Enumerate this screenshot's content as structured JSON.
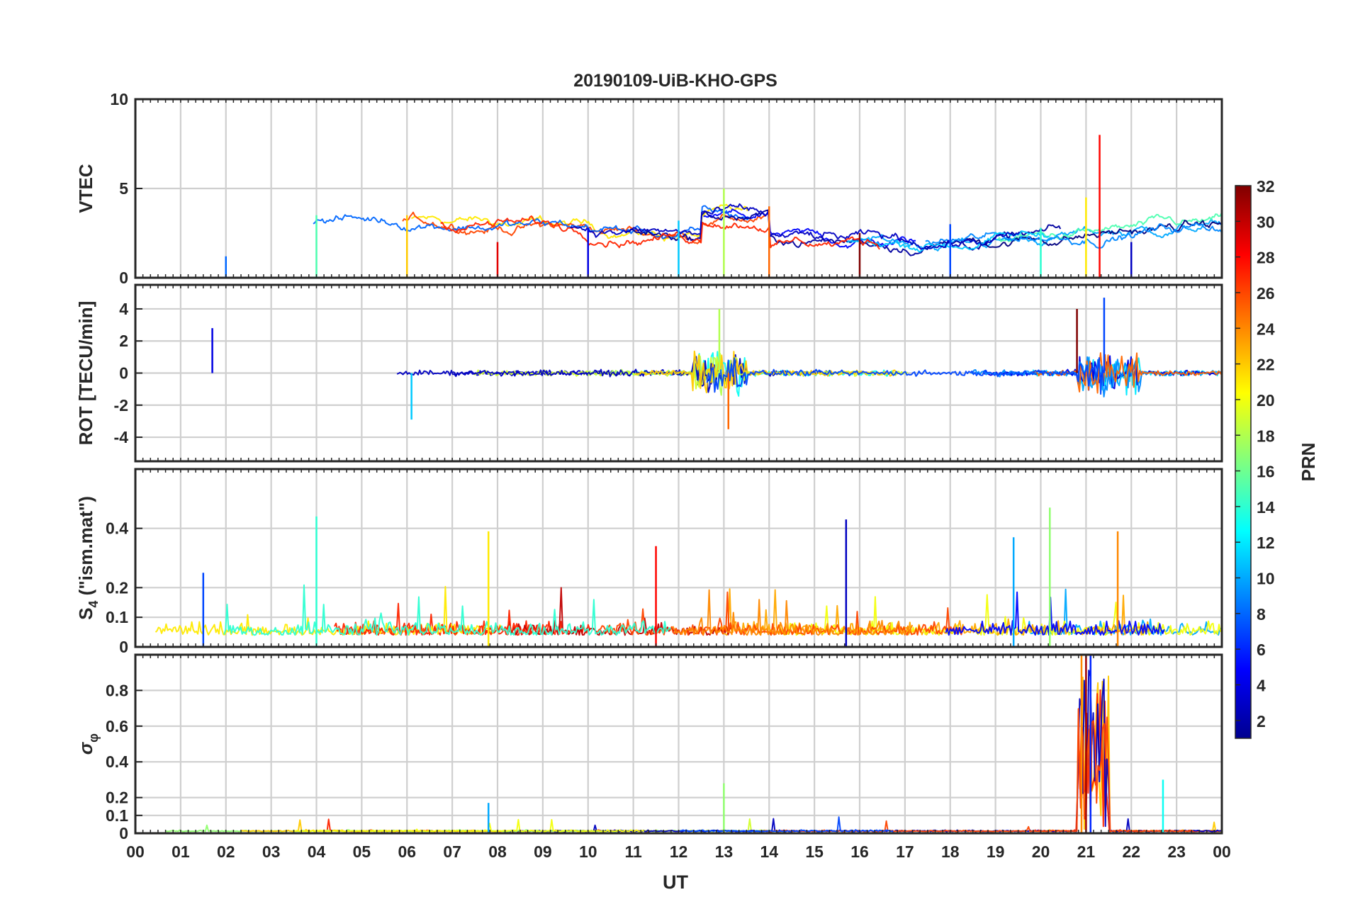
{
  "chart_data": {
    "type": "line",
    "title": "20190109-UiB-KHO-GPS",
    "xlabel": "UT",
    "x_ticks": [
      "00",
      "01",
      "02",
      "03",
      "04",
      "05",
      "06",
      "07",
      "08",
      "09",
      "10",
      "11",
      "12",
      "13",
      "14",
      "15",
      "16",
      "17",
      "18",
      "19",
      "20",
      "21",
      "22",
      "23",
      "00"
    ],
    "xlim_hours": [
      0,
      24
    ],
    "grid": true,
    "panels": [
      {
        "ylabel": "VTEC",
        "ylim": [
          0,
          10
        ],
        "yticks": [
          "0",
          "5",
          "10"
        ],
        "description": "vertical TEC per satellite",
        "series_summary": [
          {
            "x": [
              0,
              2,
              4,
              6,
              8,
              10,
              12,
              13,
              14,
              16,
              18,
              20,
              21,
              21.3,
              22,
              24
            ],
            "y": [
              2,
              1.2,
              3.5,
              3.5,
              2,
              2.8,
              3.2,
              5,
              4,
              2.5,
              3,
              2.8,
              4.5,
              8,
              2,
              2.2
            ]
          }
        ]
      },
      {
        "ylabel": "ROT [TECU/min]",
        "ylim": [
          -5.5,
          5.5
        ],
        "yticks": [
          "-4",
          "-2",
          "0",
          "2",
          "4"
        ],
        "series_summary": [
          {
            "x": [
              1.7,
              6.1,
              12.9,
              13.1,
              20.8,
              21.4
            ],
            "y": [
              2.8,
              -2.9,
              4.0,
              -3.5,
              4.0,
              4.7
            ]
          }
        ]
      },
      {
        "ylabel": "S₄ (\"ism.mat\")",
        "ylabel_main": "S",
        "ylabel_sub": "4",
        "ylabel_rest": " (\"ism.mat\")",
        "ylim": [
          0,
          0.6
        ],
        "yticks": [
          "0",
          "0.1",
          "0.2",
          "0.4"
        ],
        "series_summary": [
          {
            "x": [
              1.5,
              4.0,
              7.8,
              11.5,
              15.7,
              19.4,
              20.2,
              21.7
            ],
            "y": [
              0.25,
              0.44,
              0.39,
              0.34,
              0.43,
              0.37,
              0.47,
              0.39
            ]
          }
        ]
      },
      {
        "ylabel": "σ_φ",
        "ylabel_main": "σ",
        "ylabel_sub": "φ",
        "ylim": [
          0,
          1.0
        ],
        "yticks": [
          "0",
          "0.1",
          "0.2",
          "0.4",
          "0.6",
          "0.8"
        ],
        "series_summary": [
          {
            "x": [
              7.8,
              13.0,
              20.9,
              21.0,
              21.1,
              22.7
            ],
            "y": [
              0.17,
              0.28,
              1.0,
              1.0,
              1.0,
              0.3
            ]
          }
        ]
      }
    ],
    "colorbar": {
      "label": "PRN",
      "range": [
        1,
        32
      ],
      "ticks": [
        "2",
        "4",
        "6",
        "8",
        "10",
        "12",
        "14",
        "16",
        "18",
        "20",
        "22",
        "24",
        "26",
        "28",
        "30",
        "32"
      ],
      "colormap": "jet"
    }
  }
}
